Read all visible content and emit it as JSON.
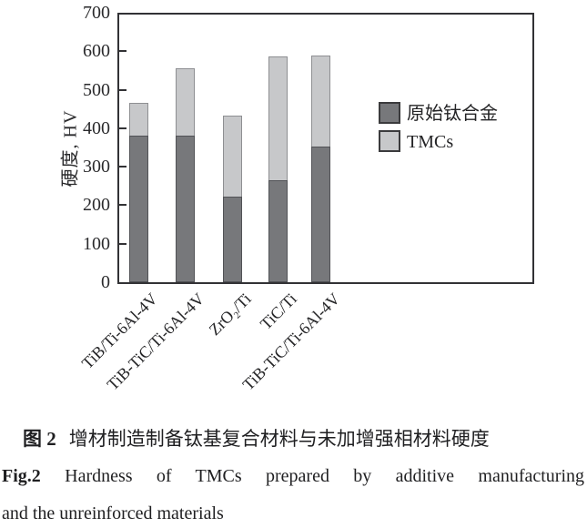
{
  "chart_data": {
    "type": "bar",
    "stacked": true,
    "title": "",
    "xlabel": "",
    "ylabel": "硬度, HV",
    "ylim": [
      0,
      700
    ],
    "ytick_step": 100,
    "grid": false,
    "legend_position": "inside-right",
    "categories": [
      "TiB/Ti-6Al-4V",
      "TiB-TiC/Ti-6Al-4V",
      "ZrO₂/Ti",
      "TiC/Ti",
      "TiB-TiC/Ti-6Al-4V"
    ],
    "series": [
      {
        "name": "原始钛合金",
        "values": [
          380,
          380,
          222,
          264,
          353
        ],
        "color": "#77787b"
      },
      {
        "name": "TMCs",
        "values": [
          85,
          175,
          210,
          322,
          236
        ],
        "color": "#c7c8ca"
      }
    ],
    "stack_totals": [
      465,
      555,
      432,
      586,
      589
    ]
  },
  "caption": {
    "cn_label": "图 2",
    "cn_text": "增材制造制备钛基复合材料与未加增强相材料硬度",
    "en_label": "Fig.2",
    "en_text": "Hardness of TMCs prepared by additive manufacturing",
    "en_text2": "and the unreinforced materials"
  },
  "colors": {
    "matrix_bar": "#77787b",
    "tmc_bar": "#c7c8ca",
    "axis": "#323235",
    "text": "#1f1f21"
  }
}
